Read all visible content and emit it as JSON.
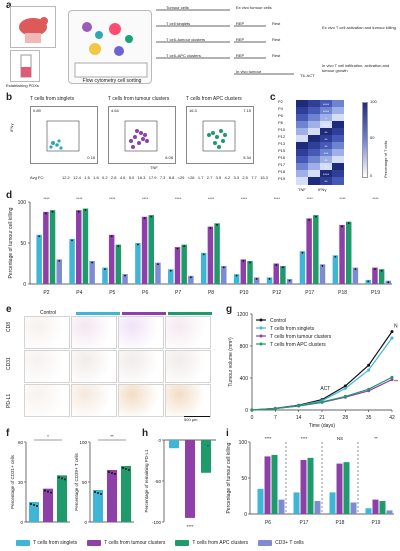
{
  "panels": {
    "a": "a",
    "b": "b",
    "c": "c",
    "d": "d",
    "e": "e",
    "f": "f",
    "g": "g",
    "h": "h",
    "i": "i"
  },
  "panel_a": {
    "labels": {
      "tumour_cells": "Tumour cells",
      "t_cell_singlets": "T cell singlets",
      "t_tumour_clusters": "T cell–tumour clusters",
      "t_apc_clusters": "T cell–APC clusters",
      "flow": "Flow cytometry cell sorting",
      "establishing": "Establishing PDXs",
      "ex_vivo_tumour": "Ex vivo tumour cells",
      "rep": "REP",
      "rest": "Rest",
      "ex_vivo_activation": "Ex vivo T cell activation and tumour killing",
      "in_vivo_tumour": "In vivo tumour",
      "til_act": "TIL ACT",
      "in_vivo_desc": "In vivo T cell infiltration, activation and tumour growth"
    }
  },
  "panel_b": {
    "titles": [
      "T cells from singlets",
      "T cells from tumour clusters",
      "T cells from APC clusters"
    ],
    "ylabel": "IFNγ",
    "xlabel": "TNF",
    "quadrants": [
      {
        "tl": "0.89",
        "tr": "",
        "br": "0.18"
      },
      {
        "tl": "4.64",
        "tr": "",
        "br": "6.08"
      },
      {
        "tl": "16.3",
        "tr": "7.15",
        "br": "5.34"
      }
    ],
    "avg_fc_label": "Avg FC:",
    "avg_fc": [
      "12.2",
      "12.4",
      "1.5",
      "1.6",
      "0.2",
      "2.8",
      "4.6",
      "5.0",
      "16.3",
      "17.9",
      "7.3",
      "8.8",
      "<29",
      "<26",
      "1.7",
      "2.7",
      "3.5",
      "4.2",
      "3.3",
      "2.5",
      "7.7",
      "15.3"
    ]
  },
  "panel_c": {
    "rows": [
      "P2",
      "P4",
      "P6",
      "P8",
      "P10",
      "P12",
      "P13",
      "P15",
      "P16",
      "P17",
      "P18",
      "P19"
    ],
    "cols": [
      "TNF",
      "IFNγ"
    ],
    "colorbar_label": "Percentage of T cells",
    "colorbar_ticks": [
      "100",
      "50",
      "0"
    ],
    "stars": [
      "****",
      "****",
      "*",
      "****",
      "**",
      "**",
      "**",
      "***",
      "**",
      "*",
      "****",
      "**"
    ]
  },
  "chart_data": [
    {
      "type": "bar",
      "title": "",
      "ylabel": "Percentage of tumour cell killing",
      "categories": [
        "P2",
        "P4",
        "P5",
        "P6",
        "P7",
        "P8",
        "P10",
        "P12",
        "P17",
        "P18",
        "P19"
      ],
      "ylim": [
        0,
        100
      ],
      "series": [
        {
          "name": "T cells from singlets",
          "values": [
            60,
            55,
            20,
            50,
            18,
            38,
            12,
            8,
            40,
            35,
            5
          ]
        },
        {
          "name": "T cells from tumour clusters",
          "values": [
            88,
            90,
            60,
            82,
            45,
            70,
            30,
            25,
            80,
            72,
            20
          ]
        },
        {
          "name": "T cells from APC clusters",
          "values": [
            90,
            92,
            48,
            84,
            48,
            74,
            28,
            22,
            84,
            76,
            18
          ]
        },
        {
          "name": "CD3+ T cells",
          "values": [
            30,
            28,
            12,
            26,
            10,
            22,
            8,
            6,
            24,
            20,
            4
          ]
        }
      ],
      "sig": [
        "****",
        "****",
        "****",
        "****",
        "****",
        "****",
        "****",
        "****",
        "****",
        "****",
        "****"
      ]
    },
    {
      "type": "line",
      "title": "",
      "xlabel": "Time (days)",
      "ylabel": "Tumour volume (mm³)",
      "x": [
        0,
        7,
        14,
        21,
        28,
        35,
        42
      ],
      "ylim": [
        0,
        1200
      ],
      "annotations": [
        "ACT",
        "NS",
        "****"
      ],
      "series": [
        {
          "name": "Control",
          "values": [
            0,
            20,
            60,
            130,
            300,
            560,
            980
          ]
        },
        {
          "name": "T cells from singlets",
          "values": [
            0,
            18,
            55,
            115,
            270,
            500,
            900
          ]
        },
        {
          "name": "T cells from tumour clusters",
          "values": [
            0,
            18,
            50,
            95,
            160,
            240,
            380
          ]
        },
        {
          "name": "T cells from APC clusters",
          "values": [
            0,
            18,
            52,
            100,
            170,
            260,
            410
          ]
        }
      ]
    },
    {
      "type": "scatter",
      "title": "",
      "ylabel": "Percentage of CD31+ cells",
      "categories": [
        "T cells from singlets",
        "T cells from tumour clusters",
        "T cells from APC clusters"
      ],
      "values": [
        15,
        25,
        35
      ],
      "ylim": [
        0,
        60
      ],
      "sig": [
        "*",
        "*"
      ]
    },
    {
      "type": "scatter",
      "title": "",
      "ylabel": "Percentage of CD39+ T cells",
      "categories": [
        "T cells from singlets",
        "T cells from tumour clusters",
        "T cells from APC clusters"
      ],
      "values": [
        40,
        65,
        70
      ],
      "ylim": [
        0,
        100
      ],
      "sig": [
        "**",
        "***"
      ]
    },
    {
      "type": "bar",
      "title": "",
      "ylabel": "Percentage of remaining PD-L1",
      "categories": [
        "T cells from singlets",
        "T cells from tumour clusters",
        "T cells from APC clusters"
      ],
      "values": [
        -10,
        -95,
        -40
      ],
      "ylim": [
        -100,
        0
      ],
      "sig": [
        "****",
        "*"
      ]
    },
    {
      "type": "bar",
      "title": "",
      "ylabel": "Percentage of tumour cell killing",
      "categories": [
        "P6",
        "P17",
        "P18",
        "P19"
      ],
      "ylim": [
        0,
        100
      ],
      "series": [
        {
          "name": "T cells from singlets",
          "values": [
            35,
            30,
            30,
            8
          ]
        },
        {
          "name": "T cells from tumour clusters",
          "values": [
            80,
            75,
            70,
            20
          ]
        },
        {
          "name": "T cells from APC clusters",
          "values": [
            82,
            78,
            72,
            18
          ]
        },
        {
          "name": "CD3+ T cells",
          "values": [
            20,
            18,
            16,
            5
          ]
        }
      ],
      "sig": [
        "****",
        "****",
        "NS",
        "**",
        "NS"
      ]
    }
  ],
  "panel_e": {
    "columns": [
      "Control",
      "",
      "",
      ""
    ],
    "rows": [
      "CD8",
      "CD31",
      "PD-L1"
    ],
    "scale_bar": "500 μm"
  },
  "legend": {
    "items": [
      {
        "label": "T cells from singlets",
        "color": "#3fb6d6"
      },
      {
        "label": "T cells from tumour clusters",
        "color": "#8f3fa8"
      },
      {
        "label": "T cells from APC clusters",
        "color": "#1f9a6b"
      },
      {
        "label": "CD3+ T cells",
        "color": "#7f8bd1"
      }
    ]
  }
}
